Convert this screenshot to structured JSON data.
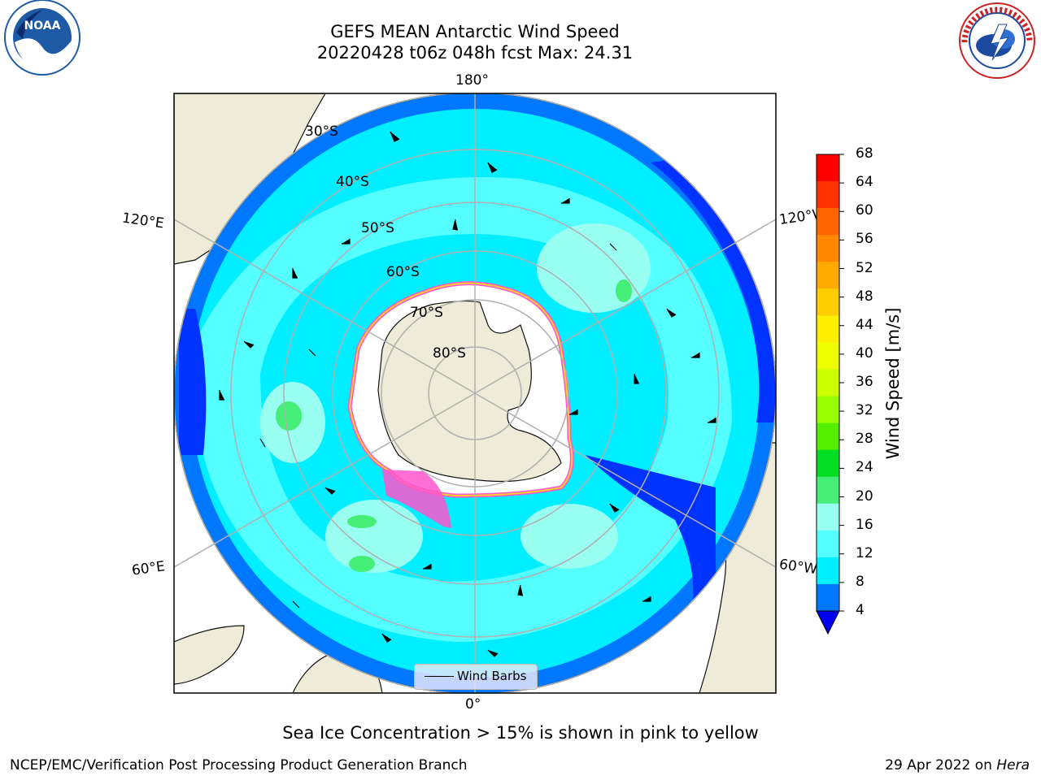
{
  "header": {
    "title_line1": "GEFS MEAN Antarctic Wind Speed",
    "title_line2": "20220428 t06z 048h fcst   Max: 24.31"
  },
  "map": {
    "projection": "south-polar-stereographic",
    "longitude_labels": {
      "top": "180°",
      "bottom": "0°",
      "upper_left": "120°E",
      "upper_right": "120°W",
      "lower_left": "60°E",
      "lower_right": "60°W"
    },
    "latitude_labels": [
      "30°S",
      "40°S",
      "50°S",
      "60°S",
      "70°S",
      "80°S"
    ],
    "colors": {
      "land": "#eeecd8",
      "ice_shelf": "#ffffff",
      "gridline": "#b0b0b0",
      "sea_ice_pink": "#ff55cc",
      "sea_ice_yellow": "#ffcc33"
    }
  },
  "legend": {
    "wind_barbs_label": "Wind Barbs"
  },
  "colorbar": {
    "label": "Wind Speed [m/s]",
    "ticks": [
      "68",
      "64",
      "60",
      "56",
      "52",
      "48",
      "44",
      "40",
      "36",
      "32",
      "28",
      "24",
      "20",
      "16",
      "12",
      "8",
      "4"
    ],
    "bands_high_to_low": [
      "#ff0000",
      "#ff3300",
      "#ff6600",
      "#ff8800",
      "#ffaa00",
      "#ffcc00",
      "#ffee00",
      "#eeff00",
      "#ccff00",
      "#99ff00",
      "#55ee00",
      "#00dd22",
      "#44ee77",
      "#99fff0",
      "#55ffff",
      "#00eeff",
      "#0077ff"
    ],
    "extend_color": "#0000ee"
  },
  "subtitle": "Sea Ice Concentration > 15% is shown in pink to yellow",
  "footer": {
    "left": "NCEP/EMC/Verification Post Processing Product Generation Branch",
    "right_date": "29 Apr 2022 on ",
    "right_host": "Hera"
  },
  "logos": {
    "noaa_text": "NOAA",
    "nws_text": "NATIONAL WEATHER SERVICE"
  }
}
